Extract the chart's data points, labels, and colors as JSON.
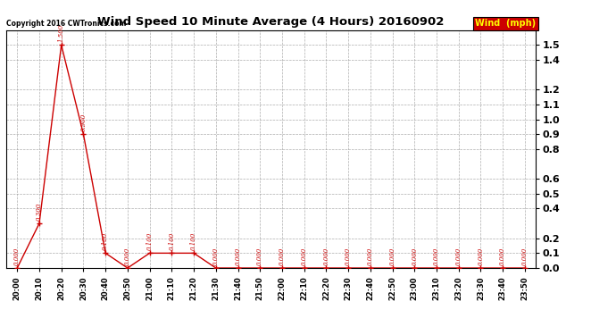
{
  "title": "Wind Speed 10 Minute Average (4 Hours) 20160902",
  "copyright": "Copyright 2016 CWTronics.com",
  "legend_label": "Wind  (mph)",
  "x_labels": [
    "20:00",
    "20:10",
    "20:20",
    "20:30",
    "20:40",
    "20:50",
    "21:00",
    "21:10",
    "21:20",
    "21:30",
    "21:40",
    "21:50",
    "22:00",
    "22:10",
    "22:20",
    "22:30",
    "22:40",
    "22:50",
    "23:00",
    "23:10",
    "23:20",
    "23:30",
    "23:40",
    "23:50"
  ],
  "y_values": [
    0.0,
    0.3,
    1.5,
    0.9,
    0.1,
    0.0,
    0.1,
    0.1,
    0.1,
    0.0,
    0.0,
    0.0,
    0.0,
    0.0,
    0.0,
    0.0,
    0.0,
    0.0,
    0.0,
    0.0,
    0.0,
    0.0,
    0.0,
    0.0
  ],
  "point_labels": [
    "0.000",
    "0.300",
    "1.500",
    "0.900",
    "0.100",
    "0.000",
    "0.100",
    "0.100",
    "0.100",
    "0.000",
    "0.000",
    "0.000",
    "0.000",
    "0.000",
    "0.000",
    "0.000",
    "0.000",
    "0.000",
    "0.000",
    "0.000",
    "0.000",
    "0.000",
    "0.000",
    "0.000"
  ],
  "line_color": "#cc0000",
  "marker_color": "#cc0000",
  "label_color": "#cc0000",
  "legend_bg": "#cc0000",
  "legend_fg": "#ffff00",
  "title_color": "#000000",
  "bg_color": "#ffffff",
  "grid_color": "#999999",
  "ylim": [
    0.0,
    1.6
  ],
  "yticks": [
    0.0,
    0.1,
    0.2,
    0.4,
    0.5,
    0.6,
    0.8,
    0.9,
    1.0,
    1.1,
    1.2,
    1.4,
    1.5
  ],
  "copyright_color": "#000000"
}
